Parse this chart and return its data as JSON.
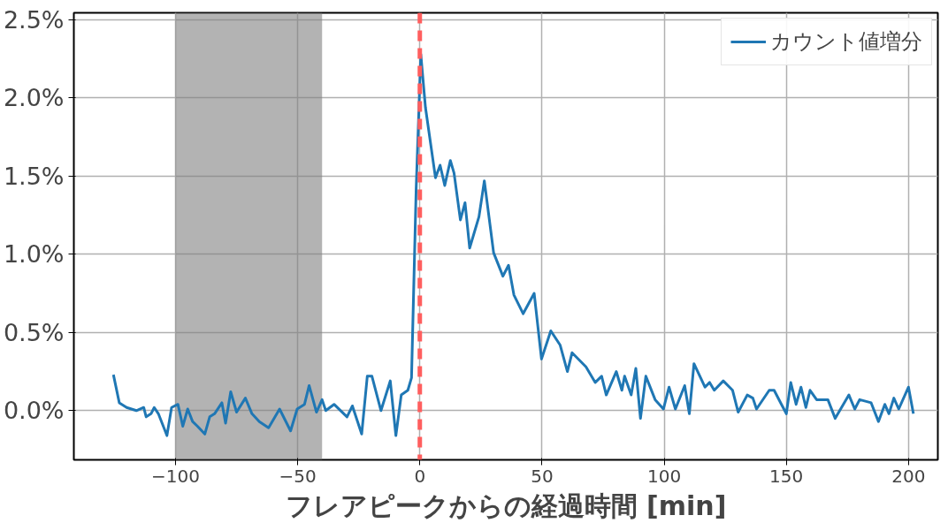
{
  "chart_data": {
    "type": "line",
    "xlabel": "フレアピークからの経過時間 [min]",
    "x": [
      -125.4,
      -123,
      -120,
      -116,
      -113,
      -112,
      -110,
      -108.7,
      -107,
      -103.5,
      -101.6,
      -99,
      -97,
      -95,
      -93,
      -91,
      -88,
      -86,
      -84,
      -81,
      -79.5,
      -77.4,
      -75,
      -71.4,
      -68.7,
      -65.7,
      -61.9,
      -57.4,
      -52.9,
      -50.2,
      -47.2,
      -45.3,
      -42.3,
      -40,
      -38.5,
      -35.1,
      -29.8,
      -27.6,
      -23.8,
      -21.5,
      -19.6,
      -15.9,
      -12.1,
      -9.8,
      -7.6,
      -4.9,
      -3.4,
      -1.5,
      0.4,
      2.3,
      6.4,
      8.3,
      10.2,
      12.5,
      14,
      16.6,
      18.5,
      20.4,
      24.2,
      26.4,
      30.2,
      34,
      36.3,
      38.5,
      42.3,
      46.8,
      49.8,
      53.6,
      57.4,
      60.4,
      62.3,
      68,
      71.8,
      74.4,
      76.3,
      80.4,
      82.7,
      83.8,
      86.5,
      88.4,
      90.3,
      92.5,
      96.3,
      99.7,
      102,
      104.6,
      108.4,
      110.3,
      112.2,
      116.7,
      118.6,
      120.5,
      124.2,
      128,
      130.3,
      134,
      136.3,
      137.8,
      143,
      145,
      148,
      150,
      151.8,
      154,
      156,
      158,
      159.7,
      162.4,
      167,
      170,
      175.6,
      178,
      180,
      184.7,
      187.7,
      190.3,
      192,
      194,
      196,
      200,
      202
    ],
    "series": [
      {
        "name": "カウント値増分",
        "color": "#1f77b4",
        "values": [
          0.23,
          0.05,
          0.02,
          0.0,
          0.02,
          -0.04,
          -0.02,
          0.02,
          -0.02,
          -0.16,
          0.02,
          0.04,
          -0.1,
          0.01,
          -0.07,
          -0.1,
          -0.15,
          -0.04,
          -0.02,
          0.05,
          -0.08,
          0.12,
          -0.01,
          0.08,
          -0.02,
          -0.07,
          -0.11,
          0.01,
          -0.13,
          0.01,
          0.04,
          0.16,
          -0.01,
          0.07,
          0.0,
          0.04,
          -0.04,
          0.03,
          -0.15,
          0.22,
          0.22,
          0.0,
          0.19,
          -0.16,
          0.1,
          0.13,
          0.21,
          1.42,
          2.28,
          1.94,
          1.49,
          1.57,
          1.44,
          1.6,
          1.52,
          1.22,
          1.33,
          1.04,
          1.24,
          1.47,
          1.01,
          0.86,
          0.93,
          0.74,
          0.62,
          0.75,
          0.33,
          0.51,
          0.42,
          0.25,
          0.37,
          0.28,
          0.18,
          0.22,
          0.1,
          0.25,
          0.13,
          0.22,
          0.1,
          0.27,
          -0.05,
          0.22,
          0.07,
          0.01,
          0.15,
          0.01,
          0.16,
          -0.02,
          0.3,
          0.15,
          0.18,
          0.13,
          0.19,
          0.13,
          -0.01,
          0.1,
          0.08,
          0.01,
          0.13,
          0.13,
          0.04,
          -0.02,
          0.18,
          0.04,
          0.15,
          0.02,
          0.13,
          0.07,
          0.07,
          -0.05,
          0.1,
          0.01,
          0.07,
          0.05,
          -0.07,
          0.04,
          -0.02,
          0.08,
          0.01,
          0.15,
          -0.02
        ]
      }
    ],
    "xlim": [
      -141.6,
      212
    ],
    "xticks": [
      {
        "value": -100,
        "label": "−100"
      },
      {
        "value": -50,
        "label": "−50"
      },
      0,
      50,
      100,
      150,
      200
    ],
    "ylim": [
      -0.315,
      2.545
    ],
    "yticks": [
      {
        "value": 0,
        "label": "0.0%"
      },
      {
        "value": 0.5,
        "label": "0.5%"
      },
      {
        "value": 1,
        "label": "1.0%"
      },
      {
        "value": 1.5,
        "label": "1.5%"
      },
      {
        "value": 2,
        "label": "2.0%"
      },
      {
        "value": 2.5,
        "label": "2.5%"
      }
    ],
    "ref_lines": [
      {
        "axis": "x",
        "value": 0,
        "color": "#ff5e5e",
        "line_style": "dashed"
      }
    ],
    "bands": [
      {
        "axis": "x",
        "from": -100,
        "to": -40,
        "color": "#808080"
      }
    ],
    "grid": true,
    "legend": "top right"
  }
}
